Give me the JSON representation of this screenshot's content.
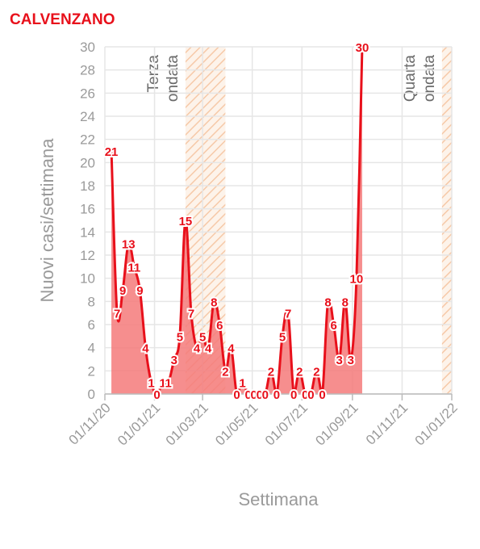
{
  "title": "CALVENZANO",
  "colors": {
    "accent": "#e8101b",
    "fill": "#f47a7a",
    "wave": "#f6c9a8",
    "grid": "#e6e6e6",
    "text": "#9a9a9a"
  },
  "chart_data": {
    "type": "area",
    "title": "CALVENZANO",
    "xlabel": "Settimana",
    "ylabel": "Nuovi casi/settimana",
    "ylim": [
      0,
      30
    ],
    "y_ticks": [
      "0",
      "2",
      "4",
      "6",
      "8",
      "10",
      "12",
      "14",
      "16",
      "18",
      "20",
      "22",
      "24",
      "26",
      "28",
      "30"
    ],
    "x_ticks": [
      "01/11/20",
      "01/01/21",
      "01/03/21",
      "01/05/21",
      "01/07/21",
      "01/09/21",
      "01/11/21",
      "01/01/22"
    ],
    "x_tick_dates": [
      "2020-11-01",
      "2021-01-01",
      "2021-03-01",
      "2021-05-01",
      "2021-07-01",
      "2021-09-01",
      "2021-11-01",
      "2022-01-01"
    ],
    "grid": true,
    "waves": [
      {
        "label_line1": "Terza",
        "label_line2": "ondata",
        "start": "2021-02-08",
        "end": "2021-03-29"
      },
      {
        "label_line1": "Quarta",
        "label_line2": "ondata",
        "start": "2021-12-20",
        "end": "2022-01-03"
      }
    ],
    "points": [
      {
        "date": "2020-11-09",
        "value": 21
      },
      {
        "date": "2020-11-16",
        "value": 7
      },
      {
        "date": "2020-11-23",
        "value": 9
      },
      {
        "date": "2020-11-30",
        "value": 13
      },
      {
        "date": "2020-12-07",
        "value": 11
      },
      {
        "date": "2020-12-14",
        "value": 9
      },
      {
        "date": "2020-12-21",
        "value": 4
      },
      {
        "date": "2020-12-28",
        "value": 1
      },
      {
        "date": "2021-01-04",
        "value": 0
      },
      {
        "date": "2021-01-11",
        "value": 1
      },
      {
        "date": "2021-01-18",
        "value": 1
      },
      {
        "date": "2021-01-25",
        "value": 3
      },
      {
        "date": "2021-02-01",
        "value": 5
      },
      {
        "date": "2021-02-08",
        "value": 15
      },
      {
        "date": "2021-02-15",
        "value": 7
      },
      {
        "date": "2021-02-22",
        "value": 4
      },
      {
        "date": "2021-03-01",
        "value": 5
      },
      {
        "date": "2021-03-08",
        "value": 4
      },
      {
        "date": "2021-03-15",
        "value": 8
      },
      {
        "date": "2021-03-22",
        "value": 6
      },
      {
        "date": "2021-03-29",
        "value": 2
      },
      {
        "date": "2021-04-05",
        "value": 4
      },
      {
        "date": "2021-04-12",
        "value": 0
      },
      {
        "date": "2021-04-19",
        "value": 1
      },
      {
        "date": "2021-04-26",
        "value": 0
      },
      {
        "date": "2021-05-03",
        "value": 0
      },
      {
        "date": "2021-05-10",
        "value": 0
      },
      {
        "date": "2021-05-17",
        "value": 0
      },
      {
        "date": "2021-05-24",
        "value": 2
      },
      {
        "date": "2021-05-31",
        "value": 0
      },
      {
        "date": "2021-06-07",
        "value": 5
      },
      {
        "date": "2021-06-14",
        "value": 7
      },
      {
        "date": "2021-06-21",
        "value": 0
      },
      {
        "date": "2021-06-28",
        "value": 2
      },
      {
        "date": "2021-07-05",
        "value": 0
      },
      {
        "date": "2021-07-12",
        "value": 0
      },
      {
        "date": "2021-07-19",
        "value": 2
      },
      {
        "date": "2021-07-26",
        "value": 0
      },
      {
        "date": "2021-08-02",
        "value": 8
      },
      {
        "date": "2021-08-09",
        "value": 6
      },
      {
        "date": "2021-08-16",
        "value": 3
      },
      {
        "date": "2021-08-23",
        "value": 8
      },
      {
        "date": "2021-08-30",
        "value": 3
      },
      {
        "date": "2021-09-06",
        "value": 10
      },
      {
        "date": "2021-09-13",
        "value": 30
      }
    ]
  }
}
